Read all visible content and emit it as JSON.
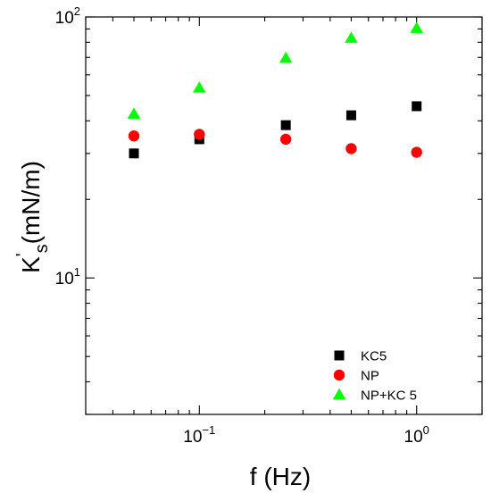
{
  "chart_data": {
    "type": "scatter",
    "xscale": "log",
    "yscale": "log",
    "xlim": [
      0.03,
      2.0
    ],
    "ylim": [
      3.0,
      100.0
    ],
    "grid": false,
    "legend_position": "bottom-right",
    "xlabel": "f (Hz)",
    "ylabel": {
      "base": "K",
      "prime": "'",
      "sub": "s",
      "rest": "(mN/m)"
    },
    "x_ticks": [
      {
        "value": 0.1,
        "base": "10",
        "exp": "−1"
      },
      {
        "value": 1,
        "base": "10",
        "exp": "0"
      }
    ],
    "y_ticks": [
      {
        "value": 10,
        "base": "10",
        "exp": "1"
      },
      {
        "value": 100,
        "base": "10",
        "exp": "2"
      }
    ],
    "series": [
      {
        "name": "KC5",
        "marker": "square",
        "color": "#000000",
        "x": [
          0.05,
          0.1,
          0.25,
          0.5,
          1.0
        ],
        "y": [
          30.0,
          34.0,
          38.5,
          42.0,
          45.5
        ]
      },
      {
        "name": "NP",
        "marker": "circle",
        "color": "#ff0000",
        "x": [
          0.05,
          0.1,
          0.25,
          0.5,
          1.0
        ],
        "y": [
          35.0,
          35.5,
          34.0,
          31.3,
          30.3
        ]
      },
      {
        "name": "NP+KC 5",
        "marker": "triangle",
        "color": "#00ff00",
        "x": [
          0.05,
          0.1,
          0.25,
          0.5,
          1.0
        ],
        "y": [
          42.5,
          53.5,
          69.5,
          83.0,
          90.5
        ]
      }
    ]
  }
}
